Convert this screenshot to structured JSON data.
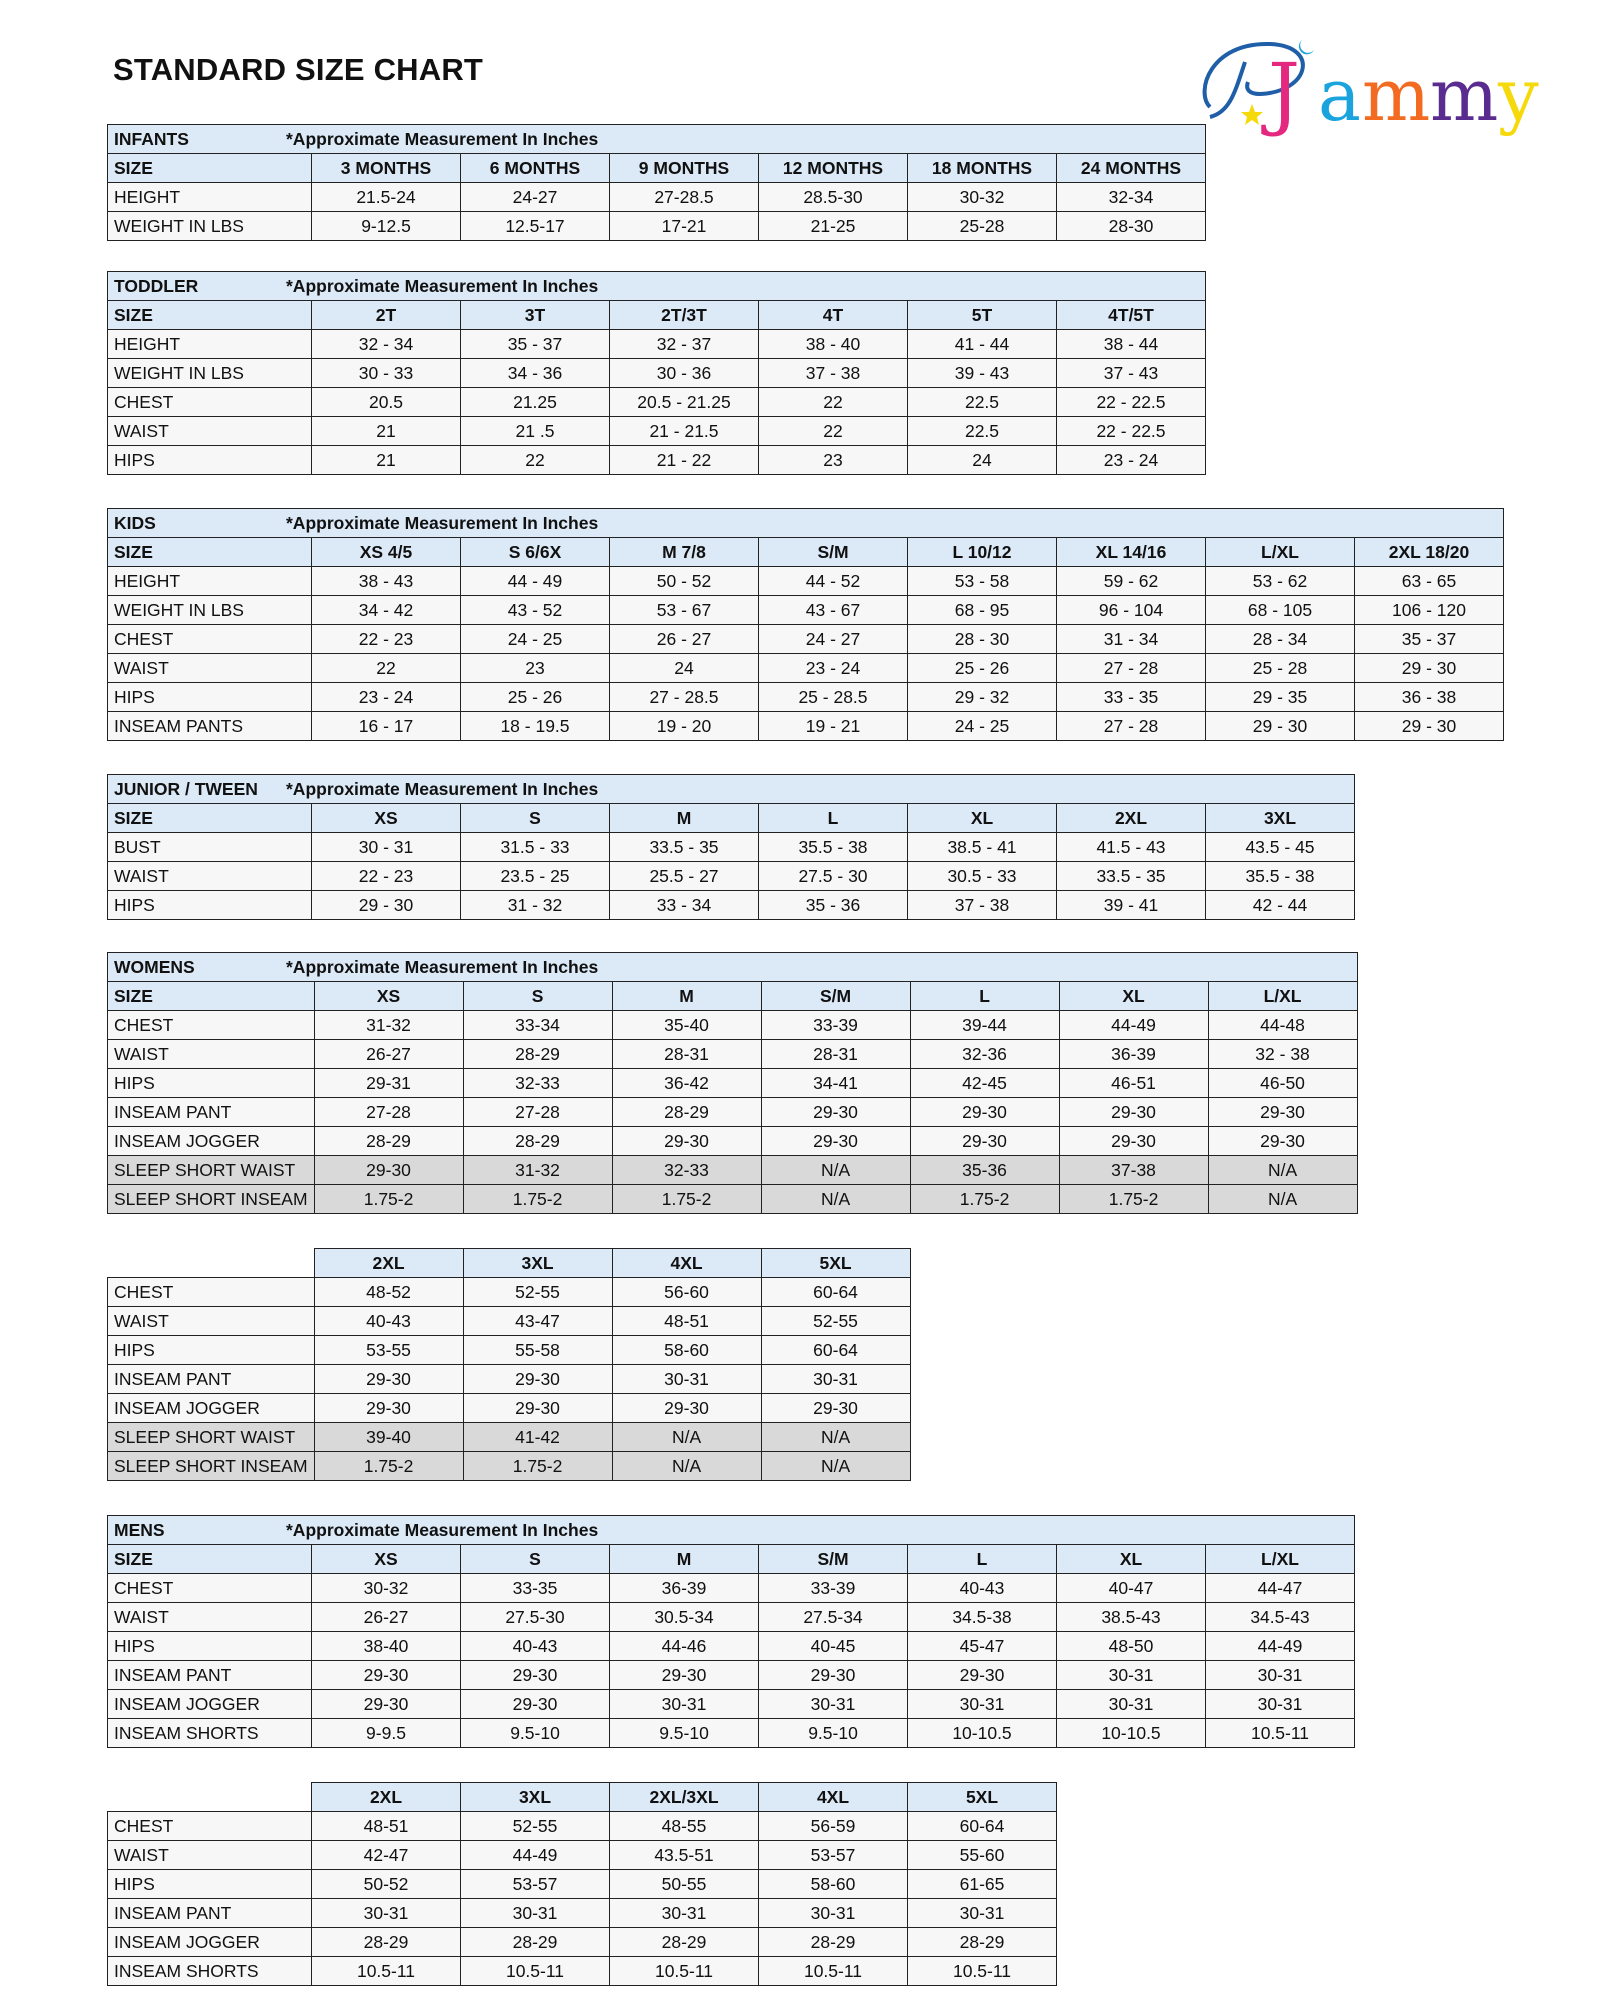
{
  "page_title": "STANDARD SIZE CHART",
  "logo": {
    "text": "PJammy",
    "colors": {
      "P": "#1f5fa8",
      "J": "#e5287f",
      "a": "#1aa3dc",
      "m1": "#f26b21",
      "m2": "#5b2c8f",
      "y": "#f5d90a"
    }
  },
  "colors": {
    "header_bg": "#dce9f7",
    "row_bg": "#f7f7f7",
    "highlight_row_bg": "#d9d9d9"
  },
  "tables": [
    {
      "title": "INFANTS",
      "note": "*Approximate Measurement In Inches",
      "size_label": "SIZE",
      "sizes": [
        "3 MONTHS",
        "6 MONTHS",
        "9 MONTHS",
        "12 MONTHS",
        "18 MONTHS",
        "24 MONTHS"
      ],
      "rows": [
        {
          "label": "HEIGHT",
          "values": [
            "21.5-24",
            "24-27",
            "27-28.5",
            "28.5-30",
            "30-32",
            "32-34"
          ]
        },
        {
          "label": "WEIGHT IN LBS",
          "values": [
            "9-12.5",
            "12.5-17",
            "17-21",
            "21-25",
            "25-28",
            "28-30"
          ]
        }
      ]
    },
    {
      "title": "TODDLER",
      "note": "*Approximate Measurement In Inches",
      "size_label": "SIZE",
      "sizes": [
        "2T",
        "3T",
        "2T/3T",
        "4T",
        "5T",
        "4T/5T"
      ],
      "rows": [
        {
          "label": "HEIGHT",
          "values": [
            "32 - 34",
            "35 - 37",
            "32 - 37",
            "38 - 40",
            "41 - 44",
            "38 - 44"
          ]
        },
        {
          "label": "WEIGHT IN LBS",
          "values": [
            "30 - 33",
            "34 - 36",
            "30 - 36",
            "37 - 38",
            "39 - 43",
            "37 - 43"
          ]
        },
        {
          "label": "CHEST",
          "values": [
            "20.5",
            "21.25",
            "20.5 - 21.25",
            "22",
            "22.5",
            "22 - 22.5"
          ]
        },
        {
          "label": "WAIST",
          "values": [
            "21",
            "21 .5",
            "21 - 21.5",
            "22",
            "22.5",
            "22 - 22.5"
          ]
        },
        {
          "label": "HIPS",
          "values": [
            "21",
            "22",
            "21 - 22",
            "23",
            "24",
            "23 - 24"
          ]
        }
      ]
    },
    {
      "title": "KIDS",
      "note": "*Approximate Measurement In Inches",
      "size_label": "SIZE",
      "sizes": [
        "XS 4/5",
        "S 6/6X",
        "M 7/8",
        "S/M",
        "L 10/12",
        "XL 14/16",
        "L/XL",
        "2XL 18/20"
      ],
      "rows": [
        {
          "label": "HEIGHT",
          "values": [
            "38 - 43",
            "44 - 49",
            "50 - 52",
            "44 - 52",
            "53 - 58",
            "59 - 62",
            "53 - 62",
            "63 - 65"
          ]
        },
        {
          "label": "WEIGHT IN LBS",
          "values": [
            "34 - 42",
            "43 - 52",
            "53 - 67",
            "43 - 67",
            "68 - 95",
            "96 - 104",
            "68 - 105",
            "106 - 120"
          ]
        },
        {
          "label": "CHEST",
          "values": [
            "22 - 23",
            "24 - 25",
            "26 - 27",
            "24 - 27",
            "28 - 30",
            "31 - 34",
            "28 - 34",
            "35 - 37"
          ]
        },
        {
          "label": "WAIST",
          "values": [
            "22",
            "23",
            "24",
            "23 - 24",
            "25 - 26",
            "27 - 28",
            "25 - 28",
            "29 - 30"
          ]
        },
        {
          "label": "HIPS",
          "values": [
            "23 - 24",
            "25 - 26",
            "27 - 28.5",
            "25 - 28.5",
            "29 - 32",
            "33 - 35",
            "29 - 35",
            "36 - 38"
          ]
        },
        {
          "label": "INSEAM PANTS",
          "values": [
            "16 - 17",
            "18 - 19.5",
            "19 - 20",
            "19 - 21",
            "24 - 25",
            "27 - 28",
            "29 - 30",
            "29 - 30"
          ]
        }
      ]
    },
    {
      "title": "JUNIOR / TWEEN",
      "note": "*Approximate Measurement In Inches",
      "size_label": "SIZE",
      "sizes": [
        "XS",
        "S",
        "M",
        "L",
        "XL",
        "2XL",
        "3XL"
      ],
      "rows": [
        {
          "label": "BUST",
          "values": [
            "30 - 31",
            "31.5 - 33",
            "33.5 - 35",
            "35.5 - 38",
            "38.5 - 41",
            "41.5 - 43",
            "43.5 - 45"
          ]
        },
        {
          "label": "WAIST",
          "values": [
            "22 - 23",
            "23.5 - 25",
            "25.5 - 27",
            "27.5 - 30",
            "30.5 - 33",
            "33.5 - 35",
            "35.5 - 38"
          ]
        },
        {
          "label": "HIPS",
          "values": [
            "29 - 30",
            "31 - 32",
            "33 - 34",
            "35 - 36",
            "37 - 38",
            "39 - 41",
            "42 - 44"
          ]
        }
      ]
    },
    {
      "title": "WOMENS",
      "note": "*Approximate Measurement In Inches",
      "size_label": "SIZE",
      "sizes": [
        "XS",
        "S",
        "M",
        "S/M",
        "L",
        "XL",
        "L/XL"
      ],
      "rows": [
        {
          "label": "CHEST",
          "values": [
            "31-32",
            "33-34",
            "35-40",
            "33-39",
            "39-44",
            "44-49",
            "44-48"
          ]
        },
        {
          "label": "WAIST",
          "values": [
            "26-27",
            "28-29",
            "28-31",
            "28-31",
            "32-36",
            "36-39",
            "32 - 38"
          ]
        },
        {
          "label": "HIPS",
          "values": [
            "29-31",
            "32-33",
            "36-42",
            "34-41",
            "42-45",
            "46-51",
            "46-50"
          ]
        },
        {
          "label": "INSEAM PANT",
          "values": [
            "27-28",
            "27-28",
            "28-29",
            "29-30",
            "29-30",
            "29-30",
            "29-30"
          ]
        },
        {
          "label": "INSEAM JOGGER",
          "values": [
            "28-29",
            "28-29",
            "29-30",
            "29-30",
            "29-30",
            "29-30",
            "29-30"
          ]
        },
        {
          "label": "SLEEP SHORT WAIST",
          "highlight": true,
          "values": [
            "29-30",
            "31-32",
            "32-33",
            "N/A",
            "35-36",
            "37-38",
            "N/A"
          ]
        },
        {
          "label": "SLEEP SHORT INSEAM",
          "highlight": true,
          "values": [
            "1.75-2",
            "1.75-2",
            "1.75-2",
            "N/A",
            "1.75-2",
            "1.75-2",
            "N/A"
          ]
        }
      ]
    },
    {
      "title": null,
      "size_label": "",
      "sizes": [
        "2XL",
        "3XL",
        "4XL",
        "5XL"
      ],
      "rows": [
        {
          "label": "CHEST",
          "values": [
            "48-52",
            "52-55",
            "56-60",
            "60-64"
          ]
        },
        {
          "label": "WAIST",
          "values": [
            "40-43",
            "43-47",
            "48-51",
            "52-55"
          ]
        },
        {
          "label": "HIPS",
          "values": [
            "53-55",
            "55-58",
            "58-60",
            "60-64"
          ]
        },
        {
          "label": "INSEAM PANT",
          "values": [
            "29-30",
            "29-30",
            "30-31",
            "30-31"
          ]
        },
        {
          "label": "INSEAM JOGGER",
          "values": [
            "29-30",
            "29-30",
            "29-30",
            "29-30"
          ]
        },
        {
          "label": "SLEEP SHORT WAIST",
          "highlight": true,
          "values": [
            "39-40",
            "41-42",
            "N/A",
            "N/A"
          ]
        },
        {
          "label": "SLEEP SHORT INSEAM",
          "highlight": true,
          "values": [
            "1.75-2",
            "1.75-2",
            "N/A",
            "N/A"
          ]
        }
      ]
    },
    {
      "title": "MENS",
      "note": "*Approximate Measurement In Inches",
      "size_label": "SIZE",
      "sizes": [
        "XS",
        "S",
        "M",
        "S/M",
        "L",
        "XL",
        "L/XL"
      ],
      "rows": [
        {
          "label": "CHEST",
          "values": [
            "30-32",
            "33-35",
            "36-39",
            "33-39",
            "40-43",
            "40-47",
            "44-47"
          ]
        },
        {
          "label": "WAIST",
          "values": [
            "26-27",
            "27.5-30",
            "30.5-34",
            "27.5-34",
            "34.5-38",
            "38.5-43",
            "34.5-43"
          ]
        },
        {
          "label": "HIPS",
          "values": [
            "38-40",
            "40-43",
            "44-46",
            "40-45",
            "45-47",
            "48-50",
            "44-49"
          ]
        },
        {
          "label": "INSEAM PANT",
          "values": [
            "29-30",
            "29-30",
            "29-30",
            "29-30",
            "29-30",
            "30-31",
            "30-31"
          ]
        },
        {
          "label": "INSEAM JOGGER",
          "values": [
            "29-30",
            "29-30",
            "30-31",
            "30-31",
            "30-31",
            "30-31",
            "30-31"
          ]
        },
        {
          "label": "INSEAM SHORTS",
          "values": [
            "9-9.5",
            "9.5-10",
            "9.5-10",
            "9.5-10",
            "10-10.5",
            "10-10.5",
            "10.5-11"
          ]
        }
      ]
    },
    {
      "title": null,
      "size_label": "",
      "sizes": [
        "2XL",
        "3XL",
        "2XL/3XL",
        "4XL",
        "5XL"
      ],
      "rows": [
        {
          "label": "CHEST",
          "values": [
            "48-51",
            "52-55",
            "48-55",
            "56-59",
            "60-64"
          ]
        },
        {
          "label": "WAIST",
          "values": [
            "42-47",
            "44-49",
            "43.5-51",
            "53-57",
            "55-60"
          ]
        },
        {
          "label": "HIPS",
          "values": [
            "50-52",
            "53-57",
            "50-55",
            "58-60",
            "61-65"
          ]
        },
        {
          "label": "INSEAM PANT",
          "values": [
            "30-31",
            "30-31",
            "30-31",
            "30-31",
            "30-31"
          ]
        },
        {
          "label": "INSEAM JOGGER",
          "values": [
            "28-29",
            "28-29",
            "28-29",
            "28-29",
            "28-29"
          ]
        },
        {
          "label": "INSEAM SHORTS",
          "values": [
            "10.5-11",
            "10.5-11",
            "10.5-11",
            "10.5-11",
            "10.5-11"
          ]
        }
      ]
    }
  ]
}
